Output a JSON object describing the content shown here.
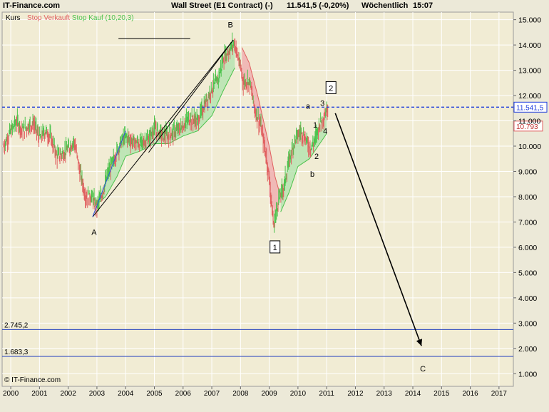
{
  "header": {
    "site": "IT-Finance.com",
    "title": "Wall Street (E1 Contract) (-)",
    "price_change": "11.541,5 (-0,20%)",
    "period": "Wöchentlich",
    "time": "15:07"
  },
  "legend": {
    "kurs": "Kurs",
    "stop_verkauft": "Stop Verkauft",
    "stop_kauf": "Stop Kauf (10,20,3)"
  },
  "copyright": "© IT-Finance.com",
  "colors": {
    "background": "#ece9d8",
    "plot_bg": "#f1ecd4",
    "up": "#4cc24c",
    "down": "#e06060",
    "band_green": "#b6e4b0",
    "band_red": "#f0b0b0",
    "current_line": "#1e3cdc",
    "level_line": "#1e3cbe",
    "trend_blue": "#3050e0"
  },
  "chart_data": {
    "type": "line",
    "y_axis": {
      "min": 0.5,
      "max": 15.3,
      "tick_labels": [
        "15.000",
        "14.000",
        "13.000",
        "12.000",
        "11.000",
        "10.000",
        "9.000",
        "8.000",
        "7.000",
        "6.000",
        "5.000",
        "4.000",
        "3.000",
        "2.000",
        "1.000"
      ],
      "tick_values": [
        15,
        14,
        13,
        12,
        11,
        10,
        9,
        8,
        7,
        6,
        5,
        4,
        3,
        2,
        1
      ]
    },
    "x_axis": {
      "min": 1999.7,
      "max": 2017.5,
      "tick_labels": [
        "2000",
        "2001",
        "2002",
        "2003",
        "2004",
        "2005",
        "2006",
        "2007",
        "2008",
        "2009",
        "2010",
        "2011",
        "2012",
        "2013",
        "2014",
        "2015",
        "2016",
        "2017"
      ],
      "tick_values": [
        2000,
        2001,
        2002,
        2003,
        2004,
        2005,
        2006,
        2007,
        2008,
        2009,
        2010,
        2011,
        2012,
        2013,
        2014,
        2015,
        2016,
        2017
      ]
    },
    "series": [
      {
        "name": "Kurs",
        "x": [
          1999.75,
          2000.0,
          2000.2,
          2000.4,
          2000.6,
          2000.8,
          2001.0,
          2001.2,
          2001.4,
          2001.6,
          2001.8,
          2002.0,
          2002.2,
          2002.4,
          2002.6,
          2002.8,
          2003.0,
          2003.2,
          2003.4,
          2003.6,
          2003.8,
          2004.0,
          2004.2,
          2004.5,
          2004.8,
          2005.0,
          2005.3,
          2005.6,
          2005.9,
          2006.2,
          2006.5,
          2006.8,
          2007.0,
          2007.2,
          2007.4,
          2007.6,
          2007.78,
          2007.95,
          2008.1,
          2008.3,
          2008.5,
          2008.7,
          2008.9,
          2009.0,
          2009.15,
          2009.3,
          2009.5,
          2009.7,
          2009.9,
          2010.1,
          2010.3,
          2010.45,
          2010.6,
          2010.75,
          2010.9,
          2011.05
        ],
        "y": [
          10.0,
          10.6,
          11.0,
          10.6,
          10.8,
          10.9,
          10.3,
          10.6,
          10.3,
          9.6,
          9.7,
          9.9,
          10.2,
          9.0,
          8.0,
          8.0,
          7.6,
          8.2,
          9.0,
          9.5,
          10.1,
          10.4,
          10.2,
          10.1,
          10.3,
          10.7,
          10.4,
          10.5,
          10.7,
          11.1,
          11.0,
          11.8,
          12.3,
          12.6,
          13.5,
          13.8,
          14.1,
          13.3,
          12.5,
          12.6,
          11.4,
          10.8,
          9.5,
          8.6,
          6.8,
          7.8,
          8.4,
          9.5,
          10.3,
          10.6,
          10.2,
          9.9,
          10.3,
          10.9,
          11.2,
          11.55
        ]
      },
      {
        "name": "Stop Verkauft",
        "x": [
          2008.05,
          2008.3,
          2008.6,
          2008.8,
          2009.0,
          2009.2,
          2009.4
        ],
        "y": [
          13.9,
          13.3,
          12.0,
          11.0,
          10.0,
          8.8,
          8.0
        ]
      },
      {
        "name": "Stop Kauf",
        "x": [
          2002.9,
          2003.3,
          2003.7,
          2004.0,
          2004.5,
          2005.0,
          2005.5,
          2006.0,
          2006.5,
          2007.0,
          2007.4,
          2007.8,
          2009.4,
          2009.7,
          2010.0,
          2010.4,
          2010.7,
          2011.0
        ],
        "y": [
          7.6,
          8.0,
          8.8,
          9.6,
          9.8,
          10.1,
          10.1,
          10.4,
          10.6,
          11.2,
          12.2,
          13.1,
          7.4,
          8.2,
          9.2,
          9.5,
          10.0,
          10.5
        ]
      }
    ],
    "current_price": {
      "value": 11.5415,
      "label": "11.541,5"
    },
    "stop_value": {
      "value": 10.793,
      "label": "10.793"
    },
    "horizontal_levels": [
      {
        "value": 2.7452,
        "label": "2.745,2"
      },
      {
        "value": 1.6833,
        "label": "1.683,3"
      }
    ],
    "annotations": [
      {
        "text": "A",
        "x": 2002.9,
        "y": 6.6,
        "boxed": false
      },
      {
        "text": "B",
        "x": 2007.65,
        "y": 14.8,
        "boxed": false
      },
      {
        "text": "1",
        "x": 2009.2,
        "y": 6.0,
        "boxed": true
      },
      {
        "text": "2",
        "x": 2011.15,
        "y": 12.3,
        "boxed": true
      },
      {
        "text": "a",
        "x": 2010.35,
        "y": 11.6,
        "boxed": false
      },
      {
        "text": "3",
        "x": 2010.85,
        "y": 11.7,
        "boxed": false
      },
      {
        "text": "1",
        "x": 2010.6,
        "y": 10.85,
        "boxed": false
      },
      {
        "text": "4",
        "x": 2010.95,
        "y": 10.6,
        "boxed": false
      },
      {
        "text": "2",
        "x": 2010.65,
        "y": 9.6,
        "boxed": false
      },
      {
        "text": "b",
        "x": 2010.5,
        "y": 8.9,
        "boxed": false
      },
      {
        "text": "C",
        "x": 2014.35,
        "y": 1.2,
        "boxed": false
      }
    ],
    "drawn_lines": [
      {
        "name": "trend-line-a-b",
        "x1": 2002.85,
        "y1": 7.2,
        "x2": 2007.75,
        "y2": 14.2,
        "color": "#000000"
      },
      {
        "name": "trend-line-blue",
        "x1": 2002.85,
        "y1": 7.2,
        "x2": 2004.0,
        "y2": 10.6,
        "color": "#3050e0"
      },
      {
        "name": "trend-line-b-c",
        "x1": 2004.8,
        "y1": 9.75,
        "x2": 2007.75,
        "y2": 14.2,
        "color": "#000000"
      },
      {
        "name": "horizontal-mark",
        "x1": 2003.75,
        "y1": 14.25,
        "x2": 2006.25,
        "y2": 14.25,
        "color": "#000000"
      }
    ],
    "projection_arrow": {
      "x1": 2011.3,
      "y1": 11.3,
      "x2": 2014.3,
      "y2": 2.1
    }
  }
}
